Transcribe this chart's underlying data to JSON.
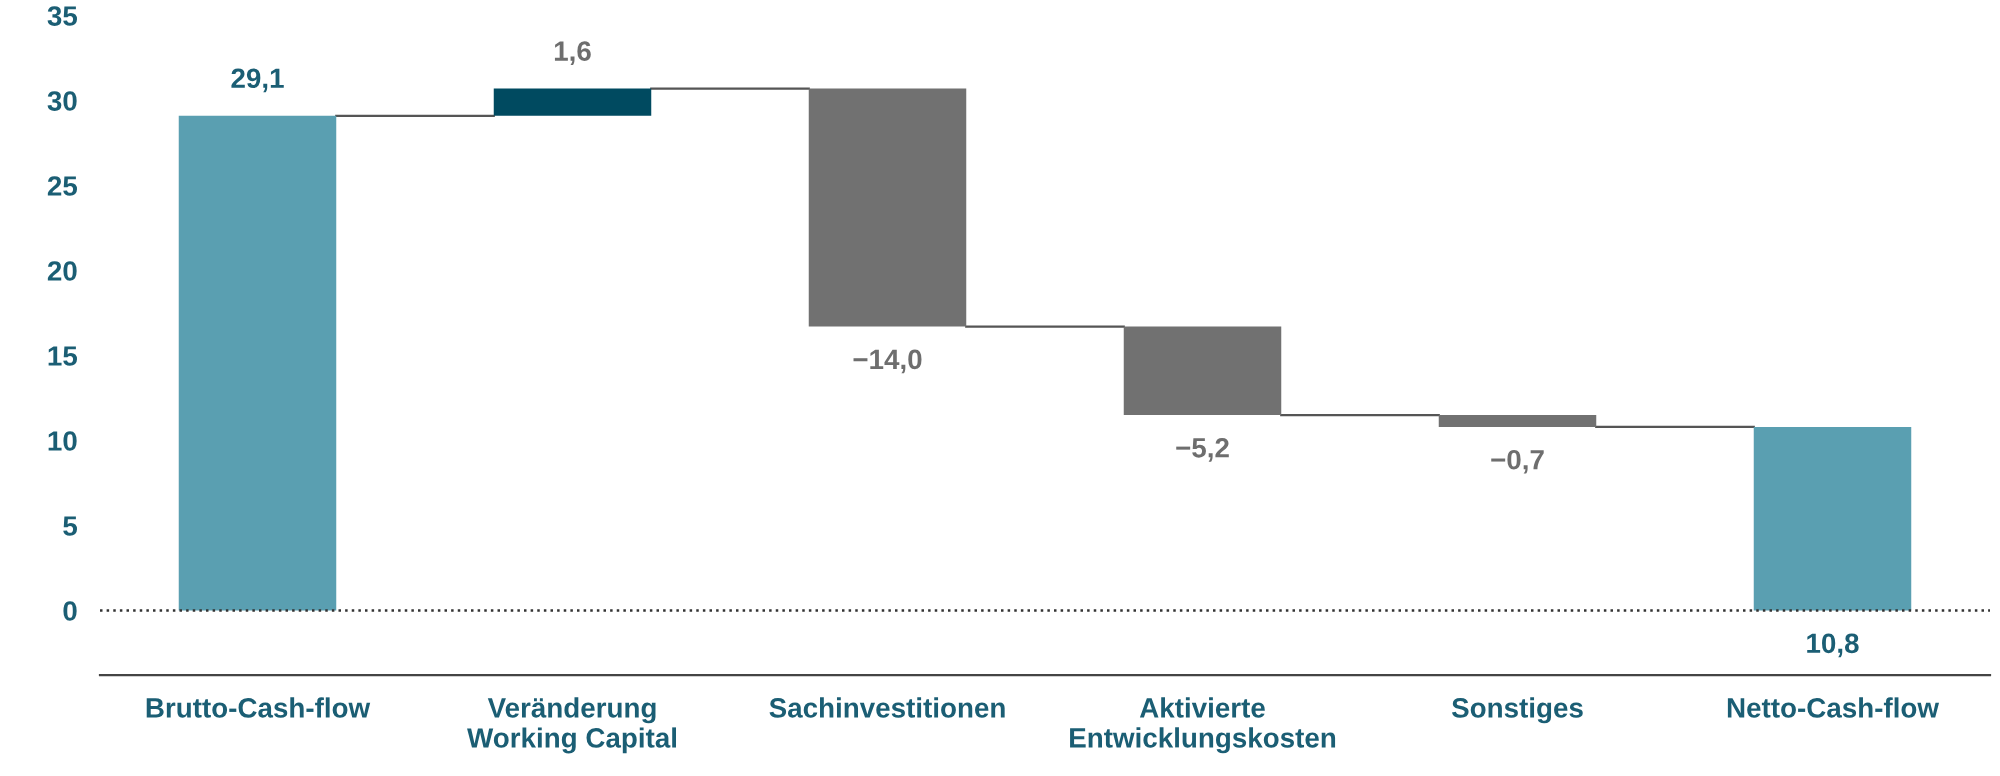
{
  "chart_data": {
    "type": "bar",
    "categories": [
      "Brutto-Cash-flow",
      "Veränderung\nWorking Capital",
      "Sachinvestitionen",
      "Aktivierte\nEntwicklungskosten",
      "Sonstiges",
      "Netto-Cash-flow"
    ],
    "values": [
      29.1,
      1.6,
      -14.0,
      -5.2,
      -0.7,
      10.8
    ],
    "base": [
      0,
      29.1,
      30.7,
      16.7,
      11.5,
      0
    ],
    "colors": [
      "#5a9fb1",
      "#004a60",
      "#717171",
      "#717171",
      "#717171",
      "#5a9fb1"
    ],
    "value_labels": [
      "29,1",
      "1,6",
      "−14,0",
      "−5,2",
      "−0,7",
      "10,8"
    ],
    "ylim": [
      -3.8,
      35
    ],
    "yticks": [
      0,
      5,
      10,
      15,
      20,
      25,
      30,
      35
    ],
    "ref_lines": [
      {
        "axis": "y",
        "value": 0,
        "line_style": "dotted",
        "color": "#333333"
      }
    ],
    "grid": false
  }
}
